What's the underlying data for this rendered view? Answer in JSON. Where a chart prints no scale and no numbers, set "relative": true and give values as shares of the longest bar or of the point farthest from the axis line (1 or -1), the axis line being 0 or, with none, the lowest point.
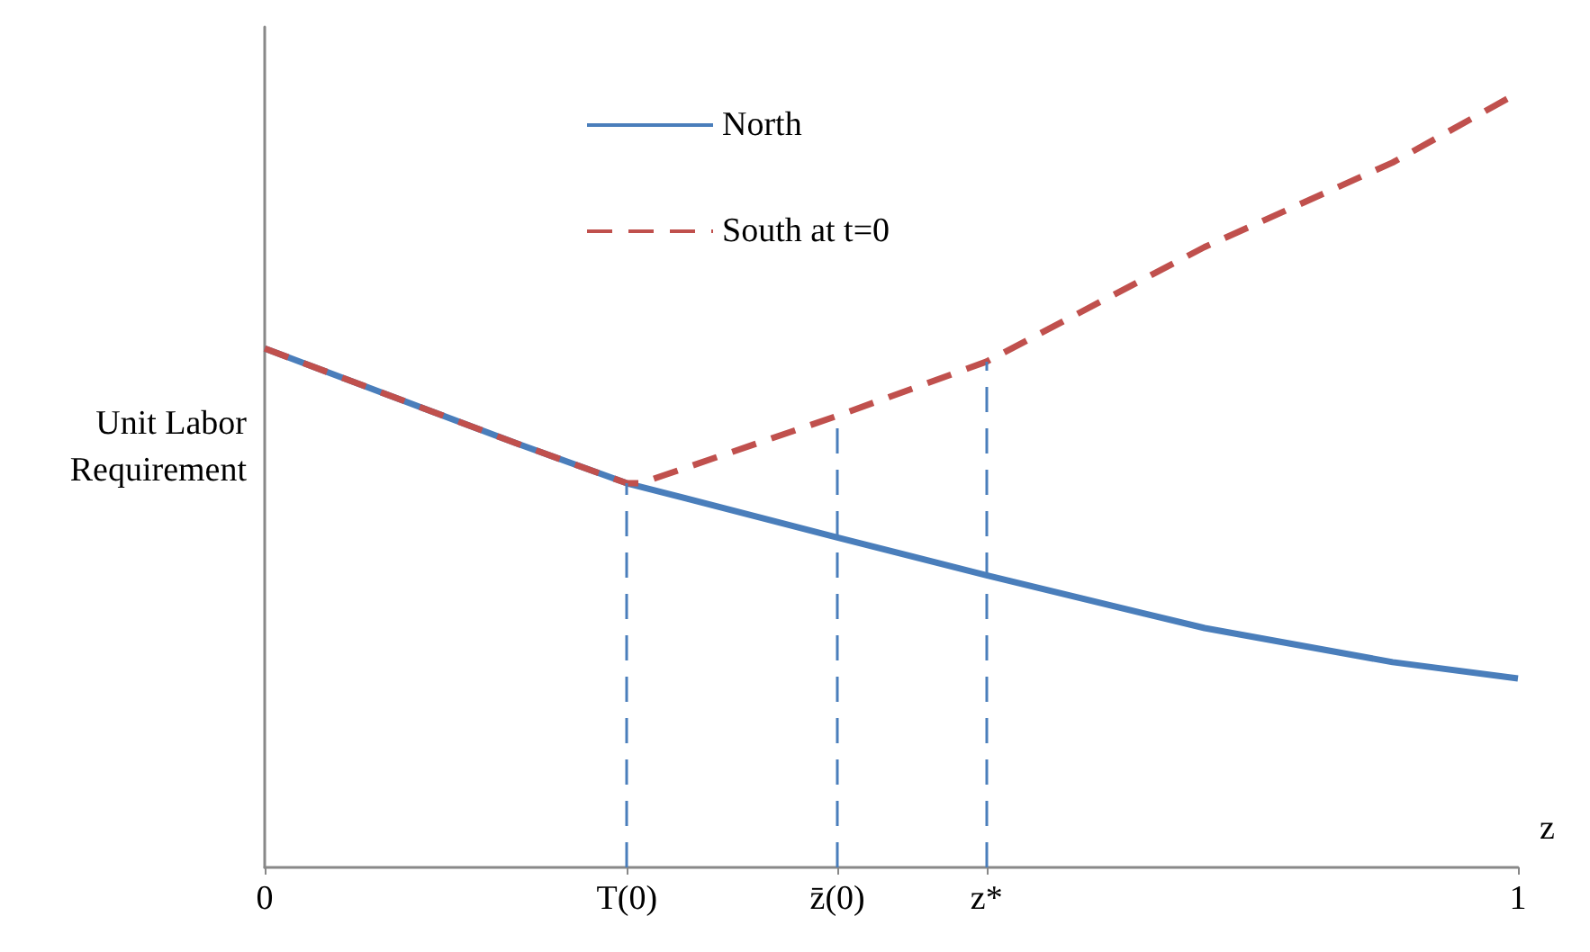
{
  "chart_data": {
    "type": "line",
    "relative": true,
    "xlabel": "z",
    "ylabel": "Unit Labor Requirement",
    "xlim": [
      0,
      1
    ],
    "xticks": [
      0,
      {
        "value": 0.289,
        "label": "T(0)"
      },
      {
        "value": 0.457,
        "label": "z̄(0)"
      },
      {
        "value": 0.576,
        "label": "z*"
      },
      1
    ],
    "tick_labels": "x",
    "grid": false,
    "legend": "top left",
    "marker": "none",
    "series": [
      {
        "name": "North",
        "color": "#4a7ebb",
        "line_style": "solid",
        "x": [
          0,
          0.1,
          0.2,
          0.289,
          0.457,
          0.576,
          0.75,
          0.9,
          1
        ],
        "values": [
          0.67,
          0.609,
          0.548,
          0.496,
          0.426,
          0.377,
          0.309,
          0.265,
          0.244
        ]
      },
      {
        "name": "South at t=0",
        "color": "#c0504d",
        "line_style": "dashed",
        "x": [
          0,
          0.1,
          0.2,
          0.289,
          0.3,
          0.457,
          0.576,
          0.75,
          0.9,
          1
        ],
        "values": [
          0.67,
          0.609,
          0.548,
          0.496,
          0.496,
          0.583,
          0.653,
          0.801,
          0.91,
          1
        ]
      }
    ],
    "ref_lines": [
      {
        "axis": "x",
        "value": 0.289,
        "color": "#4a7ebb",
        "line_style": "dashed"
      },
      {
        "axis": "x",
        "value": 0.457,
        "color": "#4a7ebb",
        "line_style": "dashed"
      },
      {
        "axis": "x",
        "value": 0.576,
        "color": "#4a7ebb",
        "line_style": "dashed"
      }
    ]
  }
}
